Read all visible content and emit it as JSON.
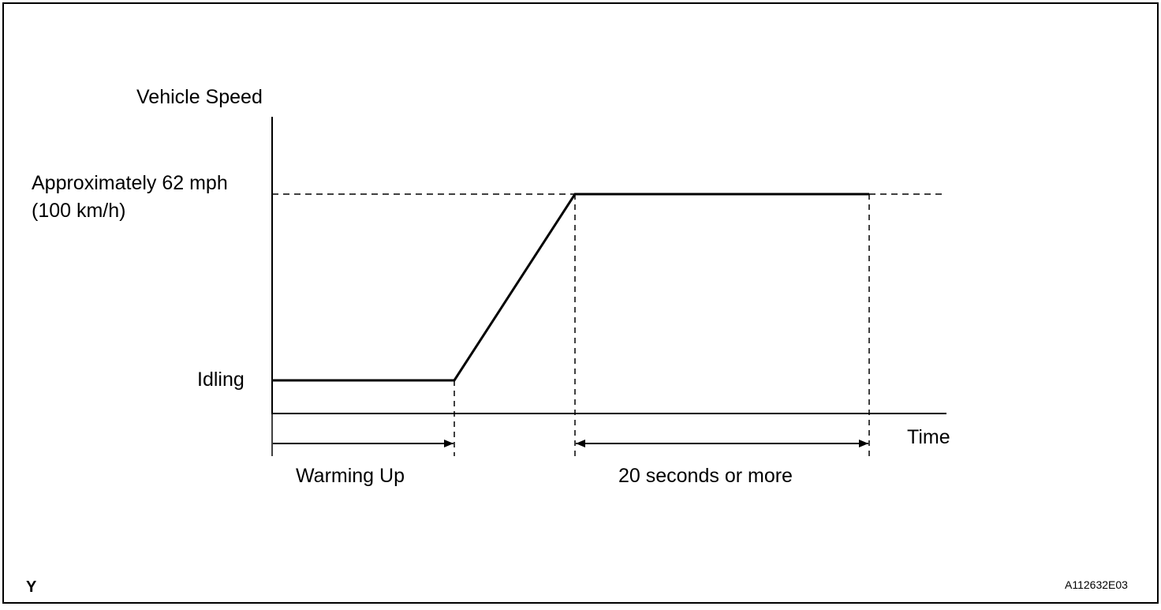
{
  "diagram": {
    "y_axis_label": "Vehicle Speed",
    "x_axis_label": "Time",
    "speed_label_line1": "Approximately 62 mph",
    "speed_label_line2": "(100 km/h)",
    "idle_label": "Idling",
    "warmup_label": "Warming Up",
    "duration_label": "20 seconds or more",
    "corner_mark": "Y",
    "figure_code": "A112632E03",
    "colors": {
      "line": "#000000",
      "background": "#ffffff"
    }
  }
}
